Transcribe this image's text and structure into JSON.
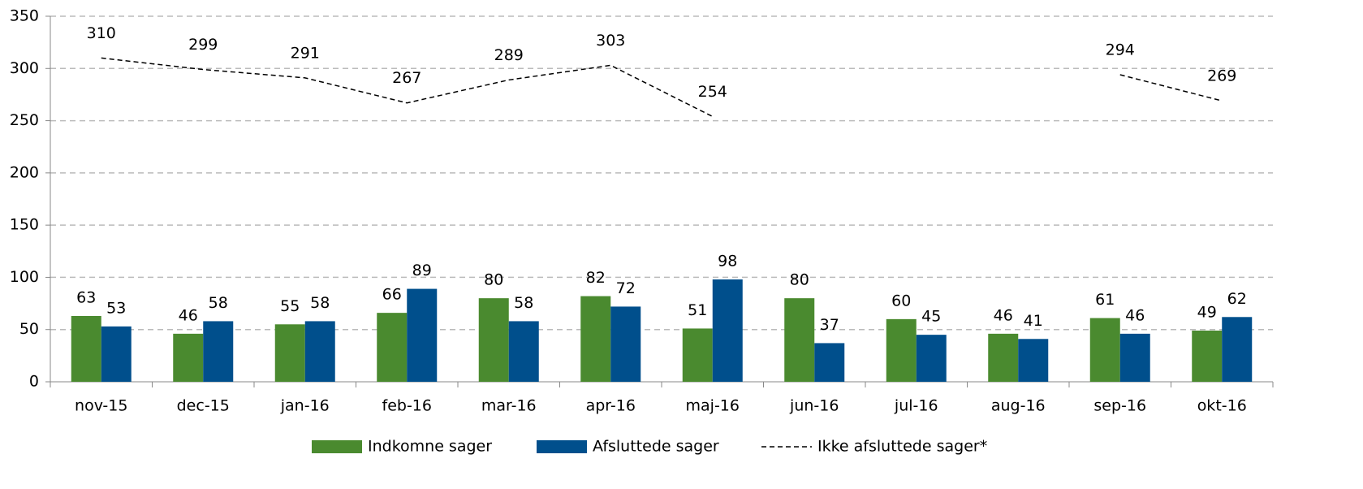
{
  "chart_data": {
    "type": "bar",
    "categories": [
      "nov-15",
      "dec-15",
      "jan-16",
      "feb-16",
      "mar-16",
      "apr-16",
      "maj-16",
      "jun-16",
      "jul-16",
      "aug-16",
      "sep-16",
      "okt-16"
    ],
    "series": [
      {
        "name": "Indkomne sager",
        "color": "#4a8a2f",
        "values": [
          63,
          46,
          55,
          66,
          80,
          82,
          51,
          80,
          60,
          46,
          61,
          49
        ]
      },
      {
        "name": "Afsluttede sager",
        "color": "#004f8c",
        "values": [
          53,
          58,
          58,
          89,
          58,
          72,
          98,
          37,
          45,
          41,
          46,
          62
        ]
      },
      {
        "name": "Ikke afsluttede sager*",
        "type": "line",
        "dashed": true,
        "color": "#000000",
        "values": [
          310,
          299,
          291,
          267,
          289,
          303,
          254,
          null,
          null,
          null,
          294,
          269
        ]
      }
    ],
    "ylim": [
      0,
      350
    ],
    "yticks": [
      0,
      50,
      100,
      150,
      200,
      250,
      300,
      350
    ],
    "grid": true,
    "legend": "bottom"
  }
}
